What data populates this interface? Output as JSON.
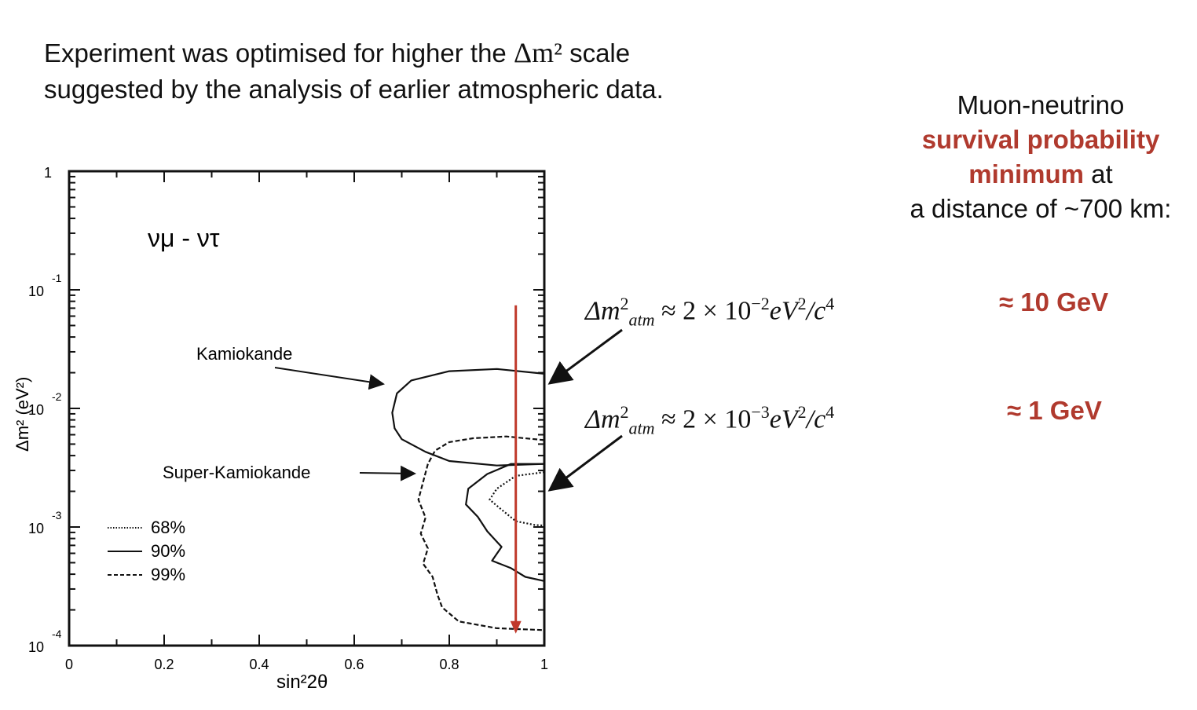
{
  "intro": {
    "line1_prefix": "Experiment was optimised for higher the ",
    "line1_math": "Δm²",
    "line1_suffix": " scale",
    "line2": "suggested by the analysis of earlier atmospheric data."
  },
  "side_note": {
    "line1": "Muon-neutrino",
    "line2_highlight": "survival probability",
    "line3_highlight": "minimum",
    "line3_suffix": " at",
    "line4": "a distance of ~700 km:"
  },
  "equations": [
    {
      "lhs": "Δm",
      "sub": "atm",
      "rhs": " ≈ 2 × 10",
      "exp": "−2",
      "unit": "eV",
      "unit_exp": "2",
      "tail": "/c",
      "tail_exp": "4",
      "energy": "≈ 10 GeV"
    },
    {
      "lhs": "Δm",
      "sub": "atm",
      "rhs": " ≈ 2 × 10",
      "exp": "−3",
      "unit": "eV",
      "unit_exp": "2",
      "tail": "/c",
      "tail_exp": "4",
      "energy": "≈ 1 GeV"
    }
  ],
  "chart_data": {
    "type": "line",
    "title": "νμ - ντ",
    "xlabel": "sin²2θ",
    "ylabel": "Δm² (eV²)",
    "xlim": [
      0,
      1
    ],
    "ylim": [
      0.0001,
      1
    ],
    "y_scale": "log",
    "x_tick_labels": [
      "0",
      "0.2",
      "0.4",
      "0.6",
      "0.8",
      "1"
    ],
    "x_ticks": [
      0,
      0.2,
      0.4,
      0.6,
      0.8,
      1
    ],
    "y_tick_labels": [
      {
        "base": "1",
        "exp": ""
      },
      {
        "base": "10",
        "exp": "-1"
      },
      {
        "base": "10",
        "exp": "-2"
      },
      {
        "base": "10",
        "exp": "-3"
      },
      {
        "base": "10",
        "exp": "-4"
      }
    ],
    "y_ticks": [
      1,
      0.1,
      0.01,
      0.001,
      0.0001
    ],
    "legend_position": "bottom-left",
    "legend": [
      {
        "label": "68%",
        "style": "dotted"
      },
      {
        "label": "90%",
        "style": "solid"
      },
      {
        "label": "99%",
        "style": "dashed"
      }
    ],
    "annotations": [
      "Kamiokande",
      "Super-Kamiokande"
    ],
    "series": [
      {
        "group": "Kamiokande",
        "style": "solid",
        "points": [
          [
            1.0,
            0.0196
          ],
          [
            0.9,
            0.0215
          ],
          [
            0.8,
            0.0206
          ],
          [
            0.72,
            0.0172
          ],
          [
            0.69,
            0.0134
          ],
          [
            0.68,
            0.0092
          ],
          [
            0.685,
            0.0068
          ],
          [
            0.7,
            0.0055
          ],
          [
            0.75,
            0.0043
          ],
          [
            0.8,
            0.0036
          ],
          [
            0.9,
            0.0033
          ],
          [
            1.0,
            0.0034
          ]
        ]
      },
      {
        "group": "Super-Kamiokande",
        "style": "dashed",
        "points": [
          [
            1.0,
            0.0054
          ],
          [
            0.92,
            0.0058
          ],
          [
            0.85,
            0.0056
          ],
          [
            0.8,
            0.0052
          ],
          [
            0.77,
            0.0044
          ],
          [
            0.755,
            0.0034
          ],
          [
            0.745,
            0.0024
          ],
          [
            0.735,
            0.0017
          ],
          [
            0.75,
            0.0012
          ],
          [
            0.74,
            0.00088
          ],
          [
            0.755,
            0.00066
          ],
          [
            0.745,
            0.00049
          ],
          [
            0.765,
            0.00038
          ],
          [
            0.775,
            0.00027
          ],
          [
            0.785,
            0.00021
          ],
          [
            0.82,
            0.00016
          ],
          [
            0.9,
            0.00014
          ],
          [
            1.0,
            0.000135
          ]
        ]
      },
      {
        "group": "Super-Kamiokande",
        "style": "solid",
        "points": [
          [
            1.0,
            0.0034
          ],
          [
            0.93,
            0.0034
          ],
          [
            0.88,
            0.0028
          ],
          [
            0.84,
            0.0021
          ],
          [
            0.835,
            0.00155
          ],
          [
            0.86,
            0.00122
          ],
          [
            0.88,
            0.00092
          ],
          [
            0.91,
            0.00068
          ],
          [
            0.89,
            0.00052
          ],
          [
            0.93,
            0.00045
          ],
          [
            0.96,
            0.00038
          ],
          [
            1.0,
            0.00035
          ]
        ]
      },
      {
        "group": "Super-Kamiokande",
        "style": "dotted",
        "points": [
          [
            1.0,
            0.0029
          ],
          [
            0.94,
            0.0027
          ],
          [
            0.9,
            0.0021
          ],
          [
            0.885,
            0.0017
          ],
          [
            0.91,
            0.0014
          ],
          [
            0.94,
            0.00112
          ],
          [
            0.98,
            0.00104
          ],
          [
            1.0,
            0.00103
          ]
        ]
      }
    ],
    "marker_line": {
      "x": 0.94,
      "y_from": 0.074,
      "y_to": 0.00013,
      "color": "#c0392b"
    }
  },
  "colors": {
    "accent": "#b03a2e",
    "arrow": "#c0392b"
  }
}
